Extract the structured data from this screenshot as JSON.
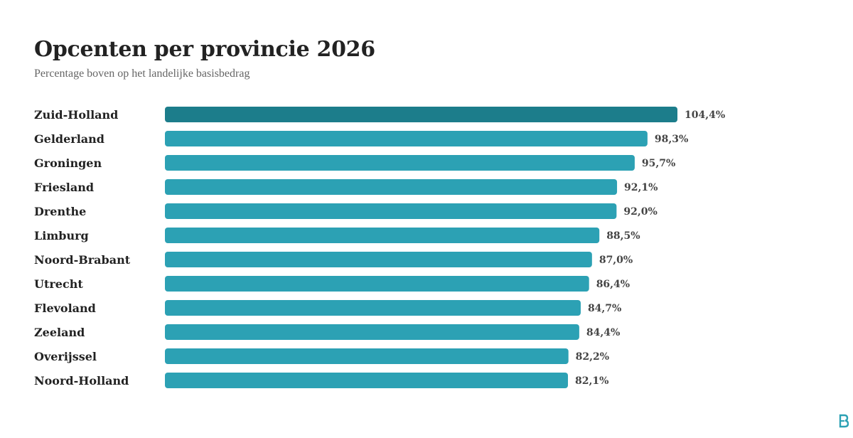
{
  "title": "Opcenten per provincie 2026",
  "subtitle": "Percentage boven op het landelijke basisbedrag",
  "colors": {
    "highlight": "#1c7d8b",
    "bar": "#2ca1b4",
    "label": "#222222",
    "value": "#444444"
  },
  "logo_icon": "logo-icon",
  "chart_data": {
    "type": "bar",
    "orientation": "horizontal",
    "title": "Opcenten per provincie 2026",
    "subtitle": "Percentage boven op het landelijke basisbedrag",
    "categories": [
      "Zuid-Holland",
      "Gelderland",
      "Groningen",
      "Friesland",
      "Drenthe",
      "Limburg",
      "Noord-Brabant",
      "Utrecht",
      "Flevoland",
      "Zeeland",
      "Overijssel",
      "Noord-Holland"
    ],
    "values": [
      104.4,
      98.3,
      95.7,
      92.1,
      92.0,
      88.5,
      87.0,
      86.4,
      84.7,
      84.4,
      82.2,
      82.1
    ],
    "value_labels": [
      "104,4%",
      "98,3%",
      "95,7%",
      "92,1%",
      "92,0%",
      "88,5%",
      "87,0%",
      "86,4%",
      "84,7%",
      "84,4%",
      "82,2%",
      "82,1%"
    ],
    "highlighted_category": "Zuid-Holland",
    "xlim": [
      0,
      104.4
    ],
    "grid": false,
    "legend": "none"
  }
}
